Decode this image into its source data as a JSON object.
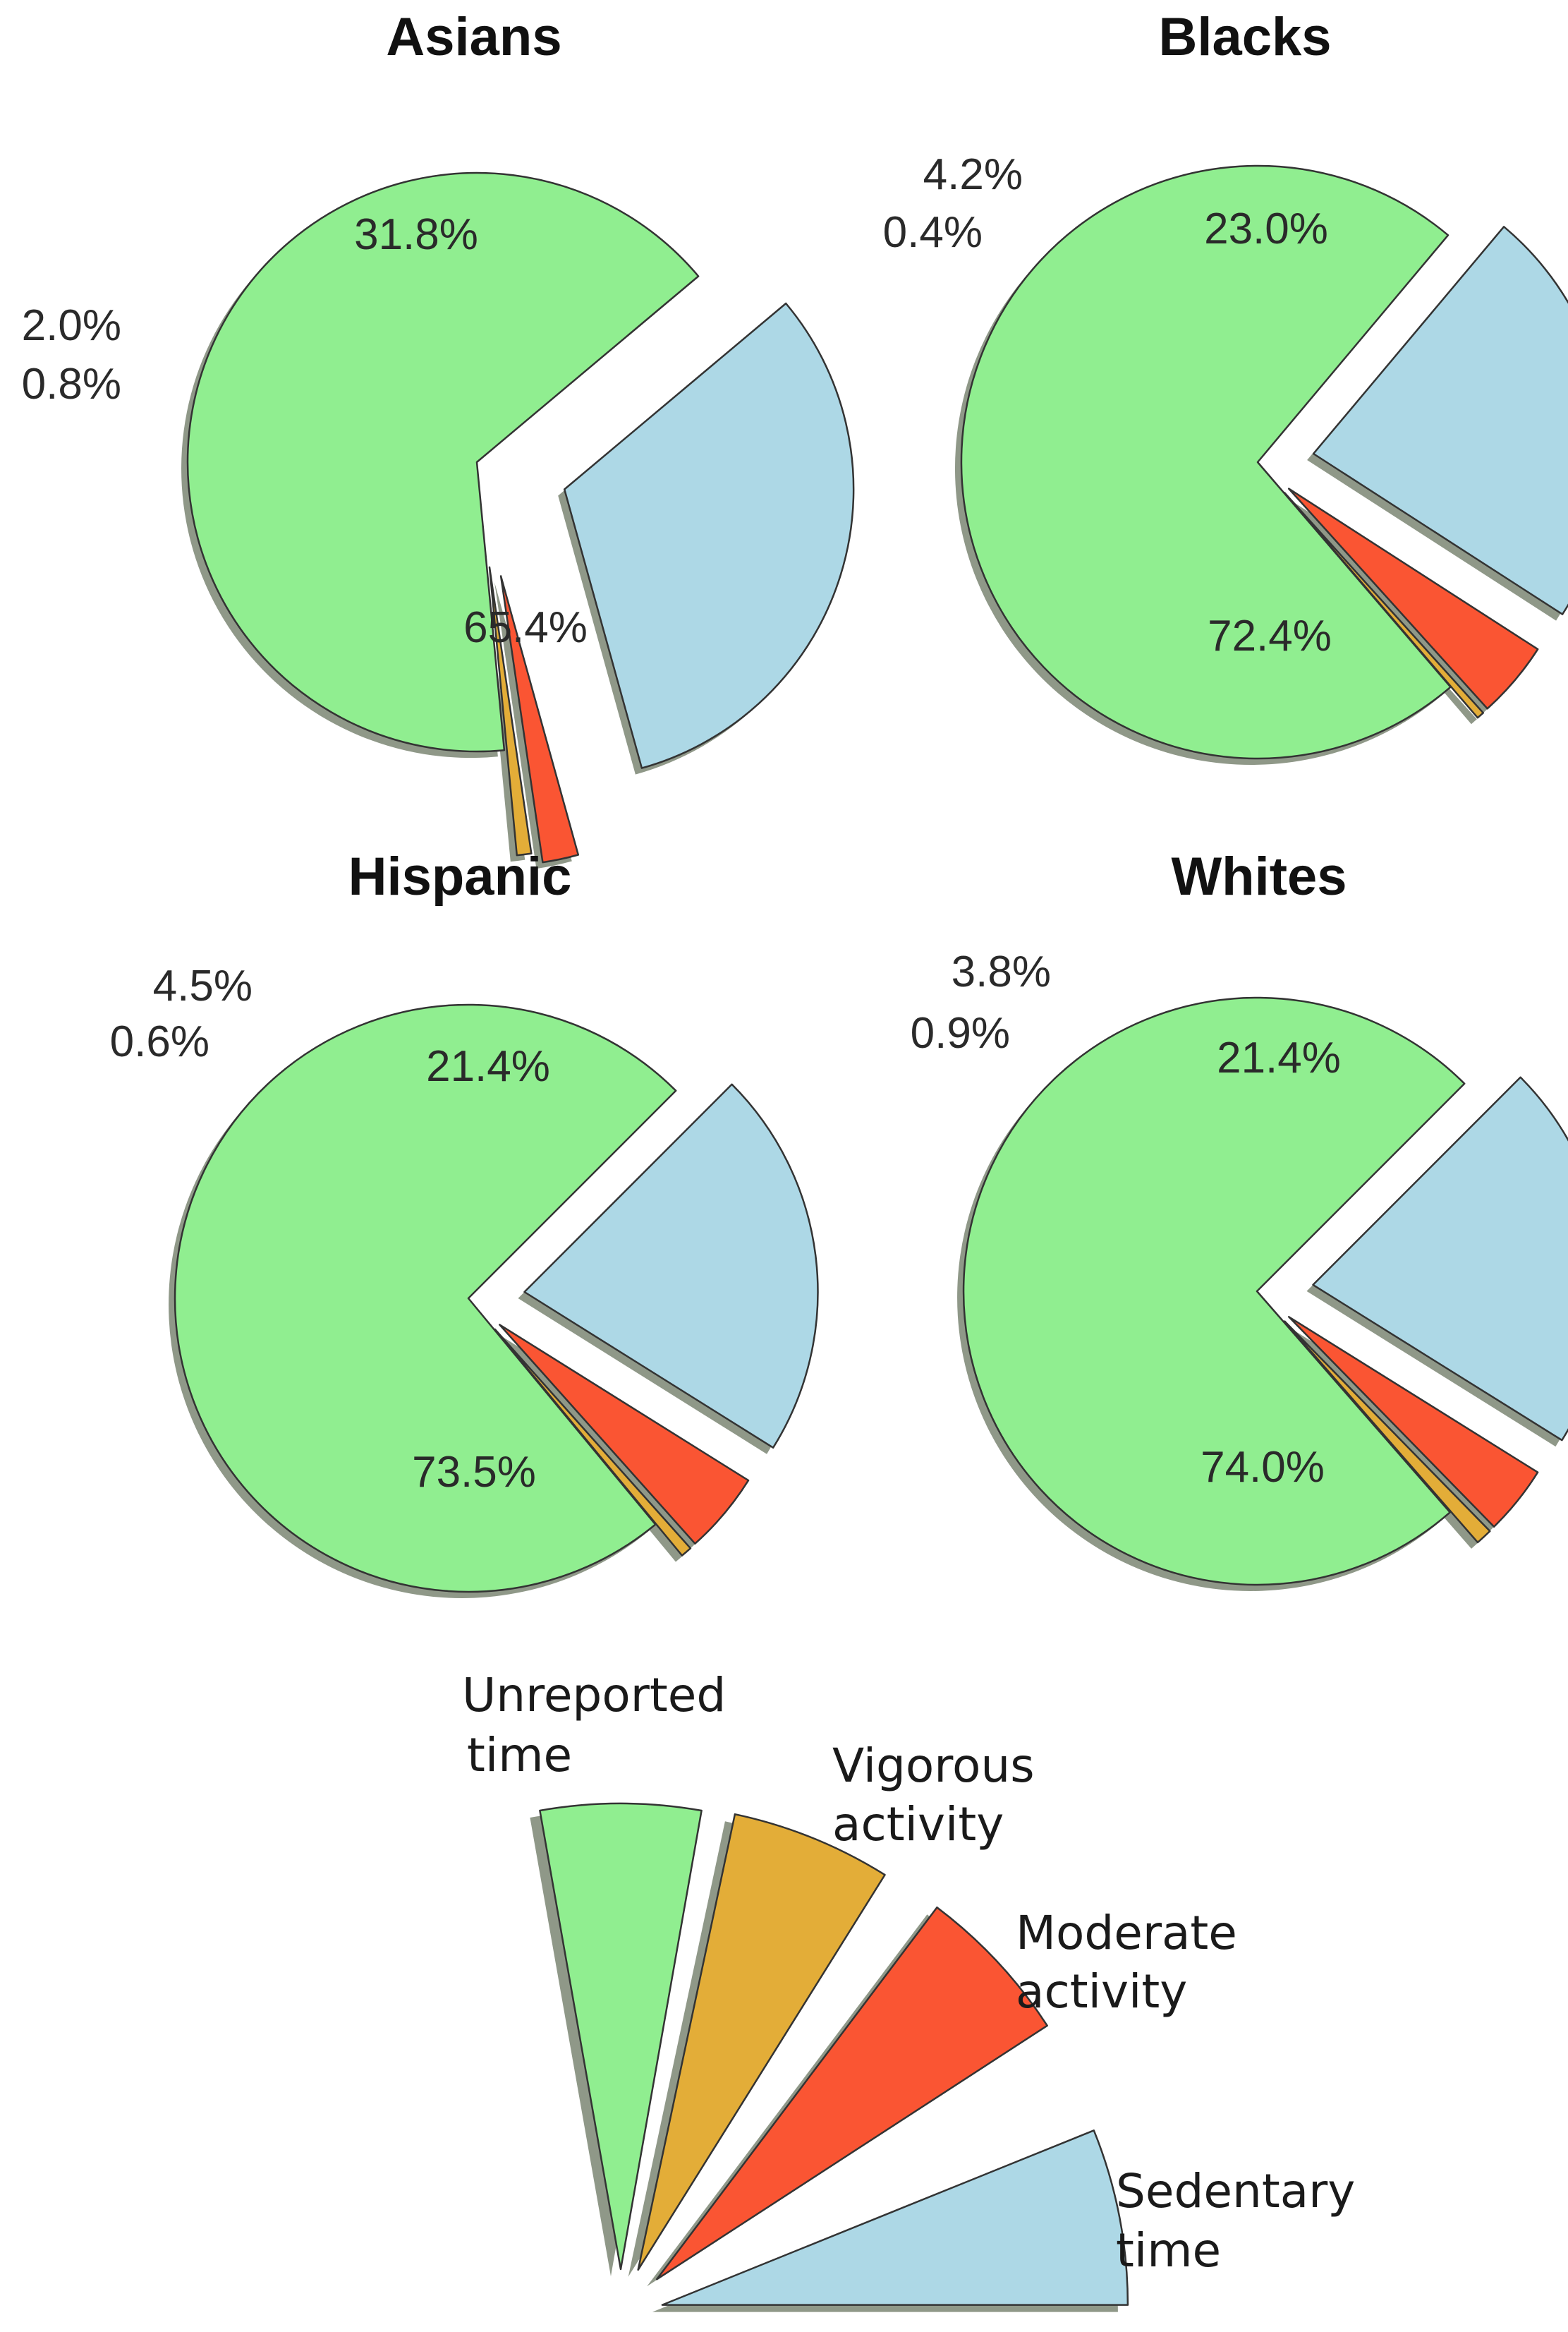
{
  "chart_data": [
    {
      "type": "pie",
      "title": "Asians",
      "slices": [
        {
          "category": "Unreported time",
          "value": 65.4,
          "label": "65.4%"
        },
        {
          "category": "Vigorous activity",
          "value": 0.8,
          "label": "0.8%"
        },
        {
          "category": "Moderate activity",
          "value": 2.0,
          "label": "2.0%"
        },
        {
          "category": "Sedentary time",
          "value": 31.8,
          "label": "31.8%"
        }
      ]
    },
    {
      "type": "pie",
      "title": "Blacks",
      "slices": [
        {
          "category": "Unreported time",
          "value": 72.4,
          "label": "72.4%"
        },
        {
          "category": "Vigorous activity",
          "value": 0.4,
          "label": "0.4%"
        },
        {
          "category": "Moderate activity",
          "value": 4.2,
          "label": "4.2%"
        },
        {
          "category": "Sedentary time",
          "value": 23.0,
          "label": "23.0%"
        }
      ]
    },
    {
      "type": "pie",
      "title": "Hispanic",
      "slices": [
        {
          "category": "Unreported time",
          "value": 73.5,
          "label": "73.5%"
        },
        {
          "category": "Vigorous activity",
          "value": 0.6,
          "label": "0.6%"
        },
        {
          "category": "Moderate activity",
          "value": 4.5,
          "label": "4.5%"
        },
        {
          "category": "Sedentary time",
          "value": 21.4,
          "label": "21.4%"
        }
      ]
    },
    {
      "type": "pie",
      "title": "Whites",
      "slices": [
        {
          "category": "Unreported time",
          "value": 74.0,
          "label": "74.0%"
        },
        {
          "category": "Vigorous activity",
          "value": 0.9,
          "label": "0.9%"
        },
        {
          "category": "Moderate activity",
          "value": 3.8,
          "label": "3.8%"
        },
        {
          "category": "Sedentary time",
          "value": 21.4,
          "label": "21.4%"
        }
      ]
    }
  ],
  "legend": {
    "items": [
      {
        "category": "Unreported time",
        "line1": "Unreported",
        "line2": "time"
      },
      {
        "category": "Vigorous activity",
        "line1": "Vigorous",
        "line2": "activity"
      },
      {
        "category": "Moderate activity",
        "line1": "Moderate",
        "line2": "activity"
      },
      {
        "category": "Sedentary time",
        "line1": "Sedentary",
        "line2": "time"
      }
    ]
  },
  "colors": {
    "Unreported time": "#90ee90",
    "Vigorous activity": "#e3ad38",
    "Moderate activity": "#fa5533",
    "Sedentary time": "#add8e6"
  }
}
